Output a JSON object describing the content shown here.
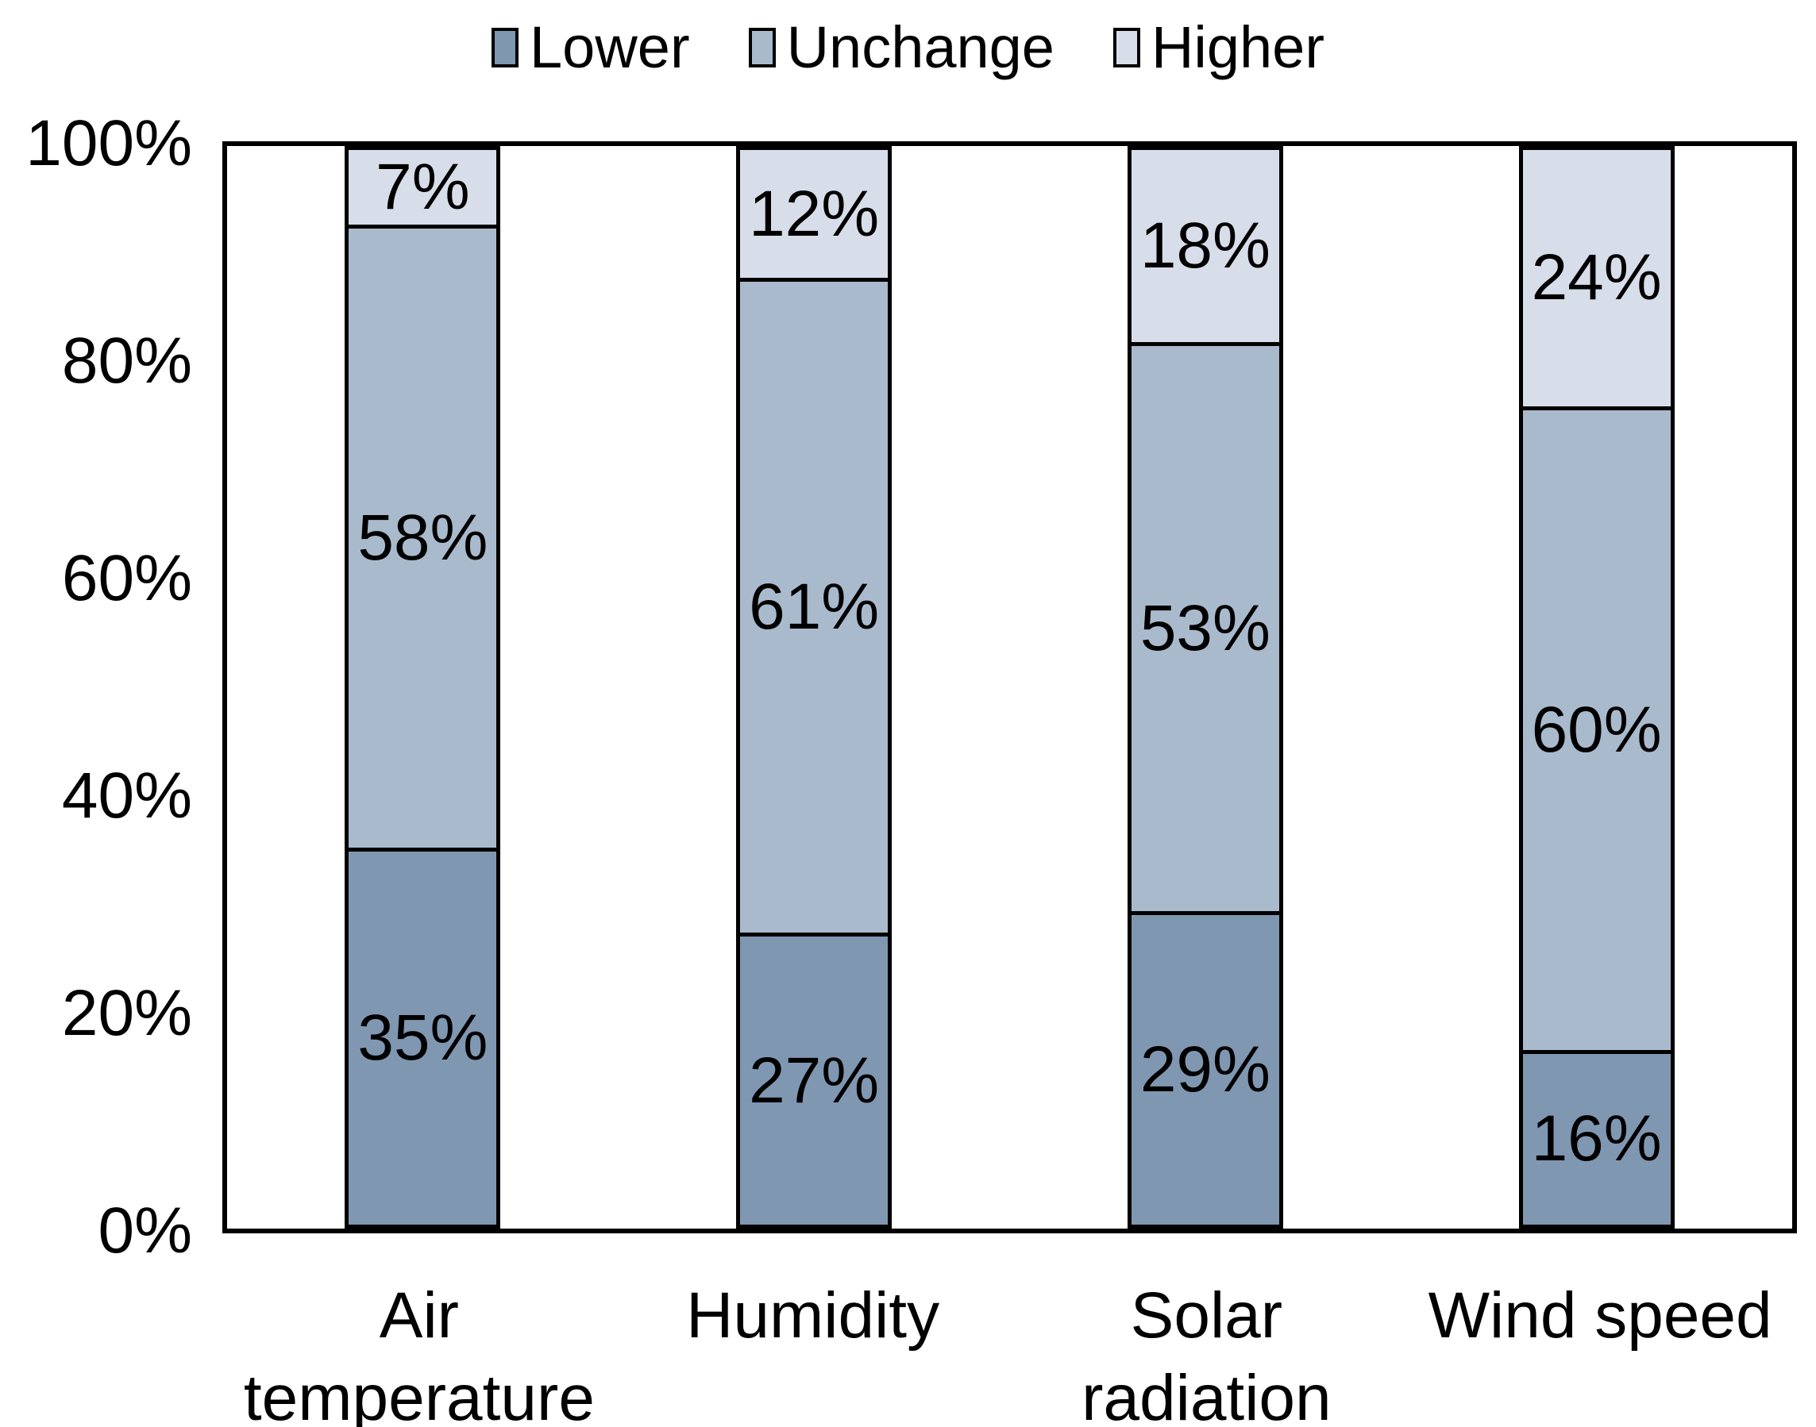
{
  "chart_data": {
    "type": "bar",
    "stacked": true,
    "percent_stacked": true,
    "title": "",
    "categories": [
      "Air\ntemperature",
      "Humidity",
      "Solar\nradiation",
      "Wind speed"
    ],
    "series": [
      {
        "name": "Lower",
        "color": "#8097B2",
        "values": [
          35,
          27,
          29,
          16
        ]
      },
      {
        "name": "Unchange",
        "color": "#AABACD",
        "values": [
          58,
          61,
          53,
          60
        ]
      },
      {
        "name": "Higher",
        "color": "#D8DEE9",
        "values": [
          7,
          12,
          18,
          24
        ]
      }
    ],
    "data_label_suffix": "%",
    "y_axis": {
      "min": 0,
      "max": 100,
      "ticks": [
        "0%",
        "20%",
        "40%",
        "60%",
        "80%",
        "100%"
      ]
    },
    "x_axis_label": "",
    "legend_position": "top",
    "grid": false,
    "colors": {
      "plot_border": "#000000",
      "background": "#FFFFFF",
      "text": "#000000"
    }
  }
}
